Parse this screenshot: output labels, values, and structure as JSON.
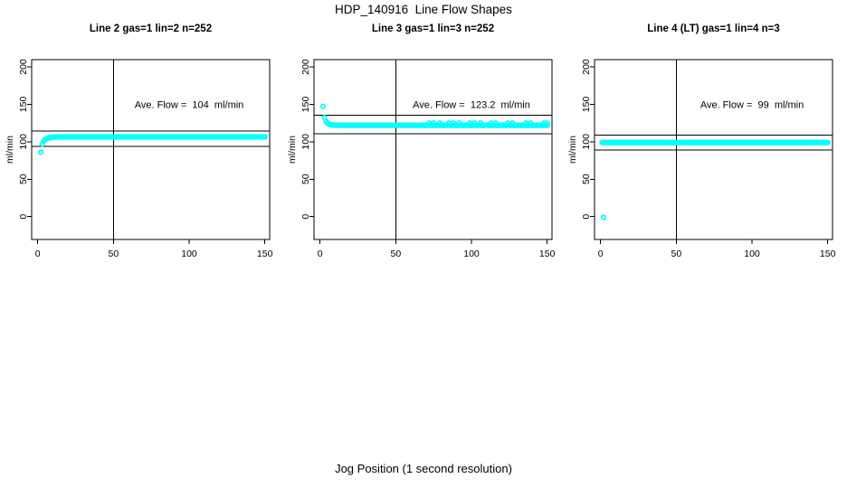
{
  "page_title": "HDP_140916  Line Flow Shapes",
  "outer_xlabel": "Jog Position (1 second resolution)",
  "point_color": "#00FFFF",
  "line_color": "#000000",
  "chart_data": [
    {
      "type": "scatter",
      "title": "Line 2 gas=1 lin=2 n=252",
      "annotation": "Ave. Flow =  104  ml/min",
      "ave_flow_ml_min": 104,
      "n": 252,
      "ylabel": "ml/min",
      "x_ticks": [
        0,
        50,
        100,
        150
      ],
      "y_ticks": [
        0,
        50,
        100,
        150,
        200
      ],
      "xlim": [
        -4,
        156
      ],
      "ylim": [
        -10,
        212
      ],
      "vline_x": 50,
      "hlines": [
        114.4,
        93.6
      ],
      "series_profile": [
        [
          2,
          86
        ],
        [
          3,
          97
        ],
        [
          4,
          101
        ],
        [
          5,
          103
        ],
        [
          6,
          104.5
        ],
        [
          8,
          105.5
        ],
        [
          12,
          106.5
        ],
        [
          150,
          106.5
        ]
      ],
      "extra_points": []
    },
    {
      "type": "scatter",
      "title": "Line 3 gas=1 lin=3 n=252",
      "annotation": "Ave. Flow =  123.2  ml/min",
      "ave_flow_ml_min": 123.2,
      "n": 252,
      "ylabel": "ml/min",
      "x_ticks": [
        0,
        50,
        100,
        150
      ],
      "y_ticks": [
        0,
        50,
        100,
        150,
        200
      ],
      "xlim": [
        -4,
        156
      ],
      "ylim": [
        -10,
        212
      ],
      "vline_x": 50,
      "hlines": [
        135.5,
        110.9
      ],
      "series_profile": [
        [
          2,
          147
        ],
        [
          3,
          132
        ],
        [
          4,
          127
        ],
        [
          5,
          125
        ],
        [
          6,
          123.5
        ],
        [
          8,
          122.5
        ],
        [
          12,
          122
        ],
        [
          150,
          122
        ]
      ],
      "extra_points": [
        [
          72,
          125
        ],
        [
          75,
          125
        ],
        [
          79,
          125
        ],
        [
          85,
          125
        ],
        [
          88,
          125
        ],
        [
          92,
          125
        ],
        [
          99,
          125
        ],
        [
          102,
          125
        ],
        [
          106,
          125
        ],
        [
          113,
          125
        ],
        [
          116,
          125
        ],
        [
          124,
          125
        ],
        [
          127,
          125
        ],
        [
          136,
          125
        ],
        [
          139,
          125
        ],
        [
          148,
          125
        ],
        [
          150,
          125
        ]
      ]
    },
    {
      "type": "scatter",
      "title": "Line 4 (LT) gas=1 lin=4 n=3",
      "annotation": "Ave. Flow =  99  ml/min",
      "ave_flow_ml_min": 99,
      "n": 3,
      "ylabel": "ml/min",
      "x_ticks": [
        0,
        50,
        100,
        150
      ],
      "y_ticks": [
        0,
        50,
        100,
        150,
        200
      ],
      "xlim": [
        -4,
        156
      ],
      "ylim": [
        -10,
        212
      ],
      "vline_x": 50,
      "hlines": [
        108.9,
        89.1
      ],
      "series_profile": [
        [
          1,
          99
        ],
        [
          150,
          99
        ]
      ],
      "extra_points": [
        [
          2,
          -1
        ]
      ]
    }
  ]
}
